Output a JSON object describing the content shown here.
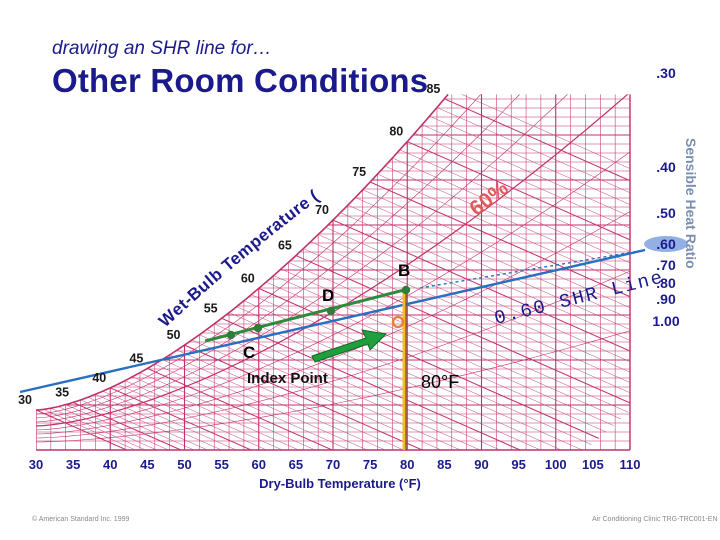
{
  "slide": {
    "subtitle": "drawing an SHR line for…",
    "title": "Other Room Conditions",
    "footer_left": "© American Standard Inc. 1999",
    "footer_right": "Air Conditioning Clinic TRG-TRC001-EN"
  },
  "chart_data": {
    "type": "psychrometric",
    "xlabel": "Dry-Bulb Temperature (°F)",
    "x_ticks": [
      30,
      35,
      40,
      45,
      50,
      55,
      60,
      65,
      70,
      75,
      80,
      85,
      90,
      95,
      100,
      105,
      110
    ],
    "xlim": [
      30,
      110
    ],
    "wet_bulb_label": "Wet-Bulb Temperature (°F)",
    "wet_bulb_values": [
      30,
      35,
      40,
      45,
      50,
      55,
      60,
      65,
      70,
      75,
      80,
      85
    ],
    "rh_label": "60%",
    "shr_scale_label": "Sensible Heat Ratio",
    "shr_scale": [
      ".30",
      ".40",
      ".50",
      ".60",
      ".70",
      ".80",
      ".90",
      "1.00"
    ],
    "shr_selected": ".60",
    "shr_line_label": "0.60 SHR Line",
    "points": [
      {
        "label": "B",
        "x": 80
      },
      {
        "label": "D",
        "x": 70
      },
      {
        "label": "C",
        "x": 58
      }
    ],
    "index_point_label": "Index Point",
    "room_temp_label": "80°F",
    "colors": {
      "grid": "#c0306a",
      "saturation": "#c0306a",
      "shr_line": "#2a6fc0",
      "room_line": "#2e8b3e",
      "arrow": "#1fa03c",
      "point_marker": "#2e7d3a",
      "index_marker": "#e8833a",
      "labels": "#1a1a8c",
      "selected_shr": "#3a6fd0",
      "rh_label": "#e05a5a"
    }
  }
}
